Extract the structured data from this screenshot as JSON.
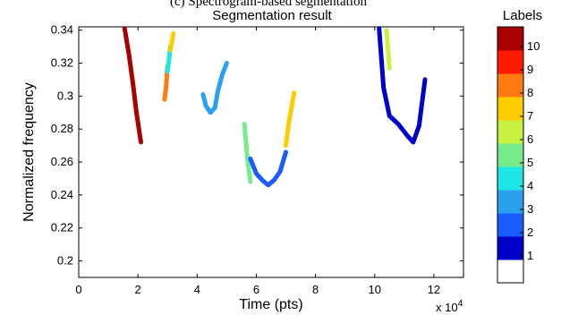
{
  "caption": "(c) Spectrogram-based segmentation",
  "chart_data": {
    "type": "line",
    "title": "Segmentation result",
    "xlabel": "Time (pts)",
    "ylabel": "Normalized frequency",
    "x_multiplier_label": "x 10",
    "x_multiplier_exp": "4",
    "xlim": [
      0,
      13
    ],
    "ylim": [
      0.19,
      0.342
    ],
    "xticks": [
      "0",
      "2",
      "4",
      "6",
      "8",
      "10",
      "12"
    ],
    "yticks": [
      "0.2",
      "0.22",
      "0.24",
      "0.26",
      "0.28",
      "0.3",
      "0.32",
      "0.34"
    ],
    "grid": false,
    "colorbar": {
      "title": "Labels",
      "ticks": [
        "1",
        "2",
        "3",
        "4",
        "5",
        "6",
        "7",
        "8",
        "9",
        "10"
      ],
      "colors": [
        "#ffffff",
        "#0000cc",
        "#1a5cff",
        "#2aa0ee",
        "#1ee6e6",
        "#78ec8c",
        "#c8f040",
        "#ffcc00",
        "#ff7a10",
        "#ff1a00",
        "#aa0000"
      ]
    },
    "series": [
      {
        "label_value": 10,
        "color": "#aa0000",
        "x": [
          1.55,
          1.7,
          1.85,
          1.95,
          2.05,
          2.1
        ],
        "y": [
          0.341,
          0.325,
          0.305,
          0.29,
          0.278,
          0.272
        ]
      },
      {
        "label_value": 8,
        "color": "#ff7a10",
        "x": [
          2.9,
          2.95,
          3.0
        ],
        "y": [
          0.298,
          0.305,
          0.318
        ]
      },
      {
        "label_value": 4,
        "color": "#1ee6e6",
        "x": [
          3.0,
          3.05,
          3.1
        ],
        "y": [
          0.315,
          0.322,
          0.33
        ]
      },
      {
        "label_value": 7,
        "color": "#ffcc00",
        "x": [
          3.1,
          3.15,
          3.2
        ],
        "y": [
          0.328,
          0.333,
          0.338
        ]
      },
      {
        "label_value": 3,
        "color": "#2aa0ee",
        "x": [
          4.2,
          4.3,
          4.45,
          4.6,
          4.7,
          4.85,
          5.0
        ],
        "y": [
          0.301,
          0.294,
          0.29,
          0.293,
          0.303,
          0.313,
          0.32
        ]
      },
      {
        "label_value": 5,
        "color": "#78ec8c",
        "x": [
          5.6,
          5.7,
          5.8
        ],
        "y": [
          0.283,
          0.262,
          0.248
        ]
      },
      {
        "label_value": 2,
        "color": "#1a5cff",
        "x": [
          5.8,
          6.0,
          6.2,
          6.4,
          6.6,
          6.8,
          7.0
        ],
        "y": [
          0.262,
          0.253,
          0.249,
          0.246,
          0.249,
          0.254,
          0.266
        ]
      },
      {
        "label_value": 7,
        "color": "#ffcc00",
        "x": [
          7.0,
          7.1,
          7.2,
          7.28
        ],
        "y": [
          0.27,
          0.284,
          0.294,
          0.302
        ]
      },
      {
        "label_value": 1,
        "color": "#0000cc",
        "x": [
          10.15,
          10.3,
          10.5,
          10.8,
          11.1,
          11.3,
          11.5,
          11.7
        ],
        "y": [
          0.341,
          0.305,
          0.288,
          0.283,
          0.276,
          0.272,
          0.282,
          0.31
        ]
      },
      {
        "label_value": 6,
        "color": "#c8f040",
        "x": [
          10.4,
          10.45,
          10.5
        ],
        "y": [
          0.34,
          0.328,
          0.317
        ]
      }
    ]
  }
}
